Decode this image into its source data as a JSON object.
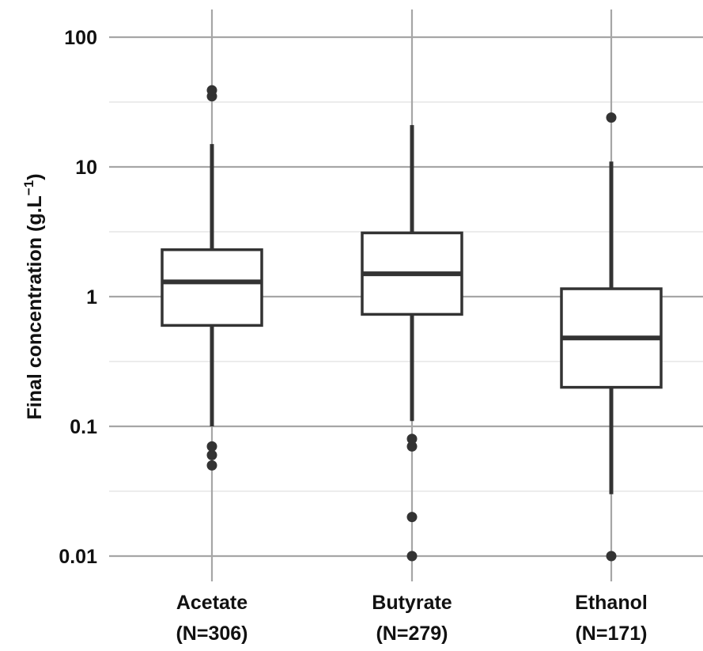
{
  "chart_data": {
    "type": "box",
    "ylabel": "Final concentration (g.L",
    "ylabel_superscript": "−1",
    "ylabel_suffix": ")",
    "yscale": "log10",
    "ylim": [
      0.01,
      100
    ],
    "yticks": [
      0.01,
      0.1,
      1,
      10,
      100
    ],
    "ytick_labels": [
      "0.01",
      "0.1",
      "1",
      "10",
      "100"
    ],
    "grid": true,
    "categories": [
      {
        "name": "Acetate",
        "n_label": "(N=306)"
      },
      {
        "name": "Butyrate",
        "n_label": "(N=279)"
      },
      {
        "name": "Ethanol",
        "n_label": "(N=171)"
      }
    ],
    "boxes": [
      {
        "category": "Acetate",
        "whisker_low": 0.1,
        "q1": 0.6,
        "median": 1.3,
        "q3": 2.3,
        "whisker_high": 15,
        "outliers": [
          0.05,
          0.06,
          0.07,
          35,
          39
        ]
      },
      {
        "category": "Butyrate",
        "whisker_low": 0.11,
        "q1": 0.73,
        "median": 1.5,
        "q3": 3.1,
        "whisker_high": 21,
        "outliers": [
          0.01,
          0.02,
          0.07,
          0.08
        ]
      },
      {
        "category": "Ethanol",
        "whisker_low": 0.03,
        "q1": 0.2,
        "median": 0.48,
        "q3": 1.15,
        "whisker_high": 11,
        "outliers": [
          0.01,
          24
        ]
      }
    ],
    "colors": {
      "box_stroke": "#333333",
      "grid_major": "#a6a6a6",
      "grid_minor": "#e6e6e6",
      "background": "#ffffff"
    }
  }
}
